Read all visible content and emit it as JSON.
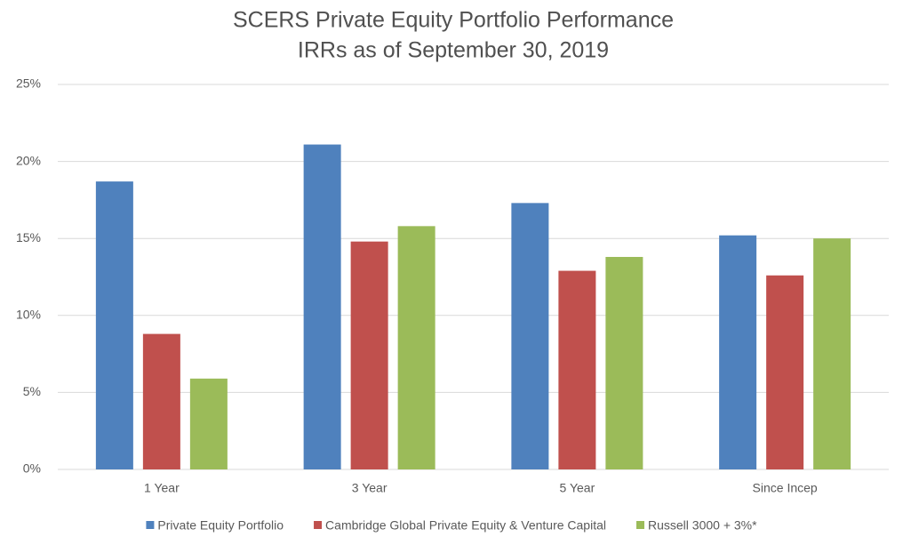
{
  "chart_data": {
    "type": "bar",
    "title": "SCERS Private Equity Portfolio Performance",
    "subtitle": "IRRs as of September 30, 2019",
    "categories": [
      "1 Year",
      "3 Year",
      "5 Year",
      "Since Incep"
    ],
    "series": [
      {
        "name": "Private Equity Portfolio",
        "color": "#4f81bd",
        "values": [
          18.7,
          21.1,
          17.3,
          15.2
        ]
      },
      {
        "name": "Cambridge Global Private Equity & Venture Capital",
        "color": "#c0504d",
        "values": [
          8.8,
          14.8,
          12.9,
          12.6
        ]
      },
      {
        "name": "Russell 3000 + 3%*",
        "color": "#9bbb59",
        "values": [
          5.9,
          15.8,
          13.8,
          15.0
        ]
      }
    ],
    "ylim": [
      0,
      25
    ],
    "yticks": [
      {
        "value": 0,
        "label": "0%"
      },
      {
        "value": 5,
        "label": "5%"
      },
      {
        "value": 10,
        "label": "10%"
      },
      {
        "value": 15,
        "label": "15%"
      },
      {
        "value": 20,
        "label": "20%"
      },
      {
        "value": 25,
        "label": "25%"
      }
    ],
    "grid": true,
    "legend": "bottom"
  }
}
